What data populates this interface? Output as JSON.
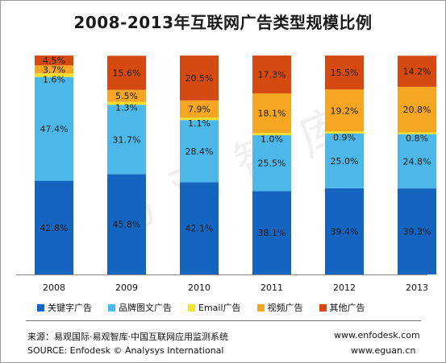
{
  "title": "2008-2013年互联网广告类型规模比例",
  "watermark": "易观智库",
  "legend": [
    {
      "label": "关键字广告",
      "color": "#1565c0"
    },
    {
      "label": "品牌图文广告",
      "color": "#4db8e8"
    },
    {
      "label": "Email广告",
      "color": "#f5e12a"
    },
    {
      "label": "视频广告",
      "color": "#f5a623"
    },
    {
      "label": "其他广告",
      "color": "#d44a10"
    }
  ],
  "footer": {
    "source_cn": "来源：易观国际·易观智库·中国互联网应用监测系统",
    "source_en": "SOURCE: Enfodesk © Analysys International",
    "url1": "www.enfodesk.com",
    "url2": "www.eguan.cn"
  },
  "chart_data": {
    "type": "bar",
    "stacked": true,
    "normalized": true,
    "categories": [
      "2008",
      "2009",
      "2010",
      "2011",
      "2012",
      "2013"
    ],
    "series": [
      {
        "name": "关键字广告",
        "color": "#1565c0",
        "values": [
          42.8,
          45.8,
          42.1,
          38.1,
          39.4,
          39.3
        ],
        "labels": [
          "42.8%",
          "45.8%",
          "42.1%",
          "38.1%",
          "39.4%",
          "39.3%"
        ]
      },
      {
        "name": "品牌图文广告",
        "color": "#4db8e8",
        "values": [
          47.4,
          31.7,
          28.4,
          25.5,
          25.0,
          24.8
        ],
        "labels": [
          "47.4%",
          "31.7%",
          "28.4%",
          "25.5%",
          "25.0%",
          "24.8%"
        ]
      },
      {
        "name": "Email广告",
        "color": "#f5e12a",
        "values": [
          1.6,
          1.3,
          1.1,
          1.0,
          0.9,
          0.8
        ],
        "labels": [
          "1.6%",
          "1.3%",
          "1.1%",
          "1.0%",
          "0.9%",
          "0.8%"
        ]
      },
      {
        "name": "视频广告",
        "color": "#f5a623",
        "values": [
          3.7,
          5.5,
          7.9,
          18.1,
          19.2,
          20.8
        ],
        "labels": [
          "3.7%",
          "5.5%",
          "7.9%",
          "18.1%",
          "19.2%",
          "20.8%"
        ]
      },
      {
        "name": "其他广告",
        "color": "#d44a10",
        "values": [
          4.5,
          15.6,
          20.5,
          17.3,
          15.5,
          14.2
        ],
        "labels": [
          "4.5%",
          "15.6%",
          "20.5%",
          "17.3%",
          "15.5%",
          "14.2%"
        ]
      }
    ],
    "ylim": [
      0,
      100
    ],
    "grid": false,
    "legend_position": "bottom"
  }
}
